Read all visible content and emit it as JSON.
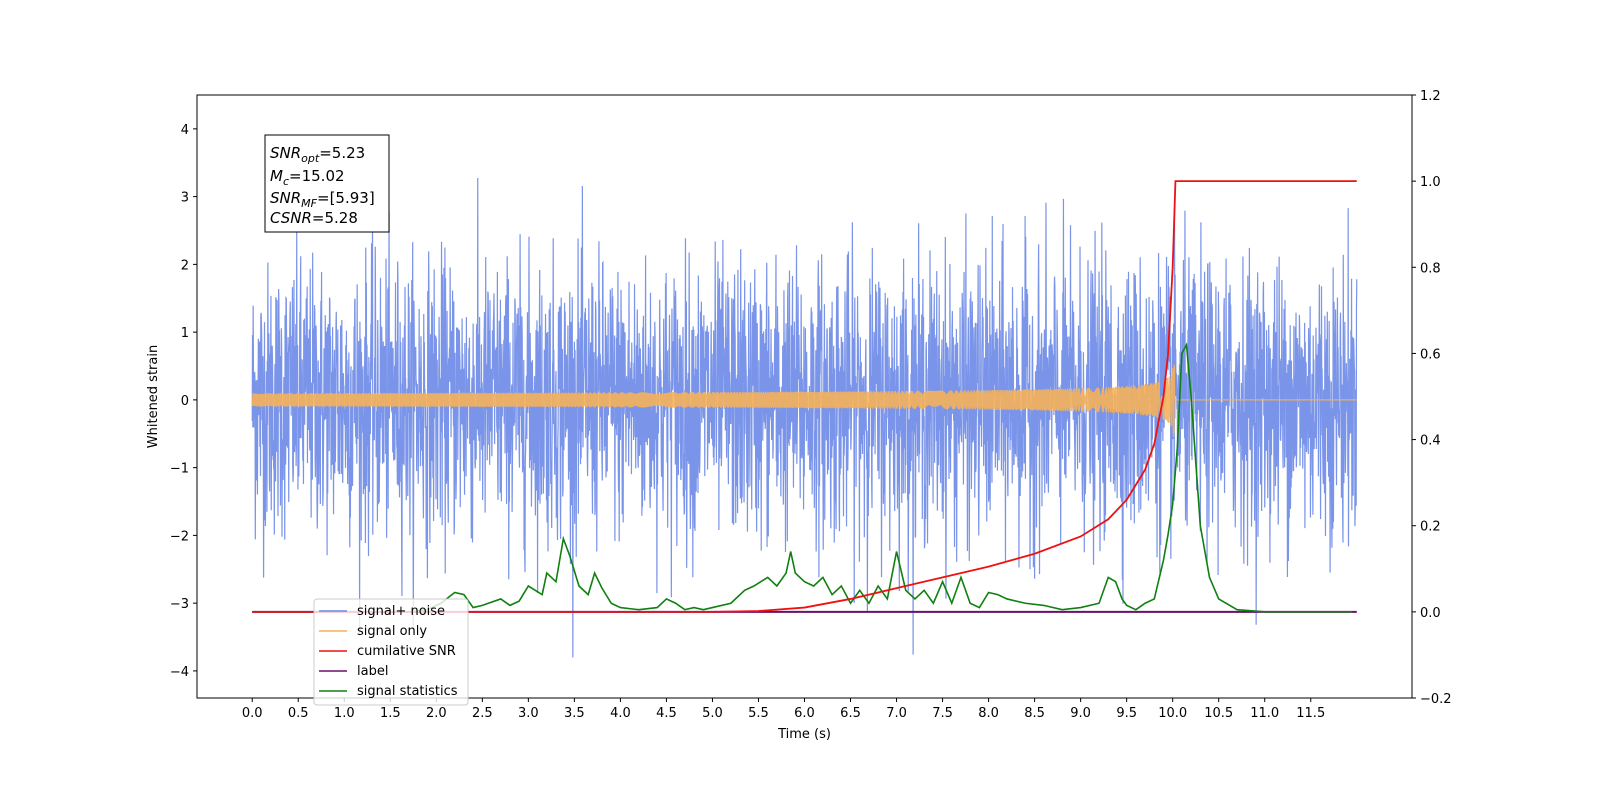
{
  "chart_data": {
    "type": "line",
    "xlabel": "Time (s)",
    "ylabel": "Whitened strain",
    "xlim": [
      -0.6,
      12.6
    ],
    "ylim_left": [
      -4.4,
      4.5
    ],
    "ylim_right": [
      -0.2,
      1.2
    ],
    "x_ticks": [
      0.0,
      0.5,
      1.0,
      1.5,
      2.0,
      2.5,
      3.0,
      3.5,
      4.0,
      4.5,
      5.0,
      5.5,
      6.0,
      6.5,
      7.0,
      7.5,
      8.0,
      8.5,
      9.0,
      9.5,
      10.0,
      10.5,
      11.0,
      11.5
    ],
    "x_tick_labels": [
      "0.0",
      "0.5",
      "1.0",
      "1.5",
      "2.0",
      "2.5",
      "3.0",
      "3.5",
      "4.0",
      "4.5",
      "5.0",
      "5.5",
      "6.0",
      "6.5",
      "7.0",
      "7.5",
      "8.0",
      "8.5",
      "9.0",
      "9.5",
      "10.0",
      "10.5",
      "11.0",
      "11.5"
    ],
    "y_left_ticks": [
      -4,
      -3,
      -2,
      -1,
      0,
      1,
      2,
      3,
      4
    ],
    "y_left_tick_labels": [
      "−4",
      "−3",
      "−2",
      "−1",
      "0",
      "1",
      "2",
      "3",
      "4"
    ],
    "y_right_ticks": [
      -0.2,
      0.0,
      0.2,
      0.4,
      0.6,
      0.8,
      1.0,
      1.2
    ],
    "y_right_tick_labels": [
      "−0.2",
      "0.0",
      "0.2",
      "0.4",
      "0.6",
      "0.8",
      "1.0",
      "1.2"
    ],
    "grid": false,
    "legend_position": "lower-left",
    "annotation": {
      "snr_opt": "=5.23",
      "mc": "=15.02",
      "snr_mf": "=[5.93]",
      "csnr": "=5.28",
      "snr_opt_base": "SNR",
      "snr_opt_sub": "opt",
      "mc_base": "M",
      "mc_sub": "c",
      "snr_mf_base": "SNR",
      "snr_mf_sub": "MF",
      "csnr_base": "CSNR"
    },
    "series": [
      {
        "name": "signal+ noise",
        "axis": "left",
        "color": "#6a88e6",
        "x_range": [
          0.0,
          12.0
        ],
        "noise_std": 1.0,
        "noise_range": [
          -3.8,
          4.1
        ]
      },
      {
        "name": "signal only",
        "axis": "left",
        "color": "#f5b15a",
        "x_range": [
          0.0,
          12.0
        ],
        "chirp_peak_time": 10.02,
        "chirp_peak_amplitude": 1.0
      },
      {
        "name": "cumilative SNR",
        "axis": "right",
        "color": "#ee1111",
        "x": [
          0,
          5.0,
          5.5,
          6.0,
          6.5,
          7.0,
          7.5,
          8.0,
          8.5,
          9.0,
          9.3,
          9.5,
          9.7,
          9.8,
          9.9,
          9.95,
          10.0,
          10.03,
          12.0
        ],
        "y": [
          0,
          0,
          0.002,
          0.01,
          0.03,
          0.055,
          0.08,
          0.105,
          0.135,
          0.175,
          0.215,
          0.26,
          0.33,
          0.39,
          0.5,
          0.6,
          0.8,
          1.0,
          1.0
        ]
      },
      {
        "name": "label",
        "axis": "right",
        "color": "#6c0f6c",
        "x": [
          0,
          12.0
        ],
        "y": [
          0,
          0
        ]
      },
      {
        "name": "signal statistics",
        "axis": "right",
        "color": "#108010",
        "x": [
          0,
          1.7,
          1.9,
          2.05,
          2.2,
          2.3,
          2.4,
          2.5,
          2.7,
          2.8,
          2.9,
          3.0,
          3.15,
          3.2,
          3.3,
          3.38,
          3.45,
          3.55,
          3.65,
          3.72,
          3.8,
          3.9,
          4.0,
          4.2,
          4.4,
          4.5,
          4.6,
          4.7,
          4.8,
          4.9,
          5.0,
          5.2,
          5.35,
          5.45,
          5.6,
          5.7,
          5.8,
          5.85,
          5.9,
          6.0,
          6.1,
          6.2,
          6.3,
          6.4,
          6.5,
          6.6,
          6.7,
          6.8,
          6.9,
          7.0,
          7.1,
          7.2,
          7.3,
          7.4,
          7.5,
          7.6,
          7.7,
          7.8,
          7.9,
          8.0,
          8.1,
          8.2,
          8.4,
          8.6,
          8.8,
          9.0,
          9.2,
          9.3,
          9.38,
          9.45,
          9.5,
          9.6,
          9.7,
          9.8,
          9.9,
          9.95,
          10.0,
          10.05,
          10.1,
          10.15,
          10.2,
          10.3,
          10.4,
          10.5,
          10.7,
          11.0,
          11.5,
          11.95
        ],
        "y": [
          0,
          0,
          0.005,
          0.02,
          0.045,
          0.04,
          0.01,
          0.015,
          0.03,
          0.015,
          0.025,
          0.06,
          0.04,
          0.09,
          0.07,
          0.17,
          0.13,
          0.06,
          0.04,
          0.09,
          0.055,
          0.02,
          0.01,
          0.005,
          0.01,
          0.03,
          0.02,
          0.005,
          0.01,
          0.005,
          0.01,
          0.02,
          0.05,
          0.06,
          0.08,
          0.06,
          0.09,
          0.14,
          0.09,
          0.07,
          0.06,
          0.08,
          0.04,
          0.06,
          0.02,
          0.05,
          0.02,
          0.06,
          0.03,
          0.14,
          0.05,
          0.03,
          0.05,
          0.02,
          0.07,
          0.02,
          0.08,
          0.02,
          0.01,
          0.045,
          0.04,
          0.03,
          0.02,
          0.015,
          0.005,
          0.01,
          0.02,
          0.08,
          0.07,
          0.03,
          0.015,
          0.005,
          0.02,
          0.03,
          0.12,
          0.18,
          0.25,
          0.38,
          0.6,
          0.62,
          0.5,
          0.2,
          0.08,
          0.03,
          0.005,
          0,
          0,
          0
        ]
      }
    ]
  }
}
